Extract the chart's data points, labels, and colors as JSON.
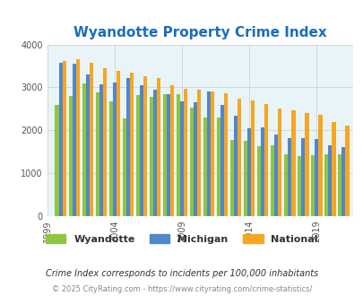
{
  "title": "Wyandotte Property Crime Index",
  "title_color": "#1a6ebd",
  "bg_color": "#e8f4f8",
  "fig_bg": "#ffffff",
  "wyandotte": [
    2580,
    2800,
    3100,
    2890,
    2680,
    2270,
    2820,
    2770,
    2840,
    2840,
    2530,
    2300,
    2300,
    1780,
    1760,
    1620,
    1650,
    1440,
    1400,
    1420,
    1450,
    1430
  ],
  "michigan": [
    3580,
    3560,
    3300,
    3080,
    3110,
    3220,
    3050,
    2950,
    2840,
    2680,
    2650,
    2900,
    2590,
    2330,
    2050,
    2060,
    1890,
    1810,
    1810,
    1800,
    1650,
    1600
  ],
  "national": [
    3610,
    3660,
    3570,
    3450,
    3380,
    3340,
    3250,
    3220,
    3050,
    2960,
    2940,
    2900,
    2860,
    2740,
    2700,
    2600,
    2510,
    2460,
    2400,
    2360,
    2200,
    2100
  ],
  "xtick_years": [
    1999,
    2004,
    2009,
    2014,
    2019
  ],
  "wyandotte_color": "#8dc63f",
  "michigan_color": "#4f87cd",
  "national_color": "#f5a623",
  "ylim": [
    0,
    4000
  ],
  "yticks": [
    0,
    1000,
    2000,
    3000,
    4000
  ],
  "legend_labels": [
    "Wyandotte",
    "Michigan",
    "National"
  ],
  "footnote1": "Crime Index corresponds to incidents per 100,000 inhabitants",
  "footnote2": "© 2025 CityRating.com - https://www.cityrating.com/crime-statistics/",
  "footnote1_color": "#333333",
  "footnote2_color": "#888888",
  "grid_color": "#cccccc"
}
